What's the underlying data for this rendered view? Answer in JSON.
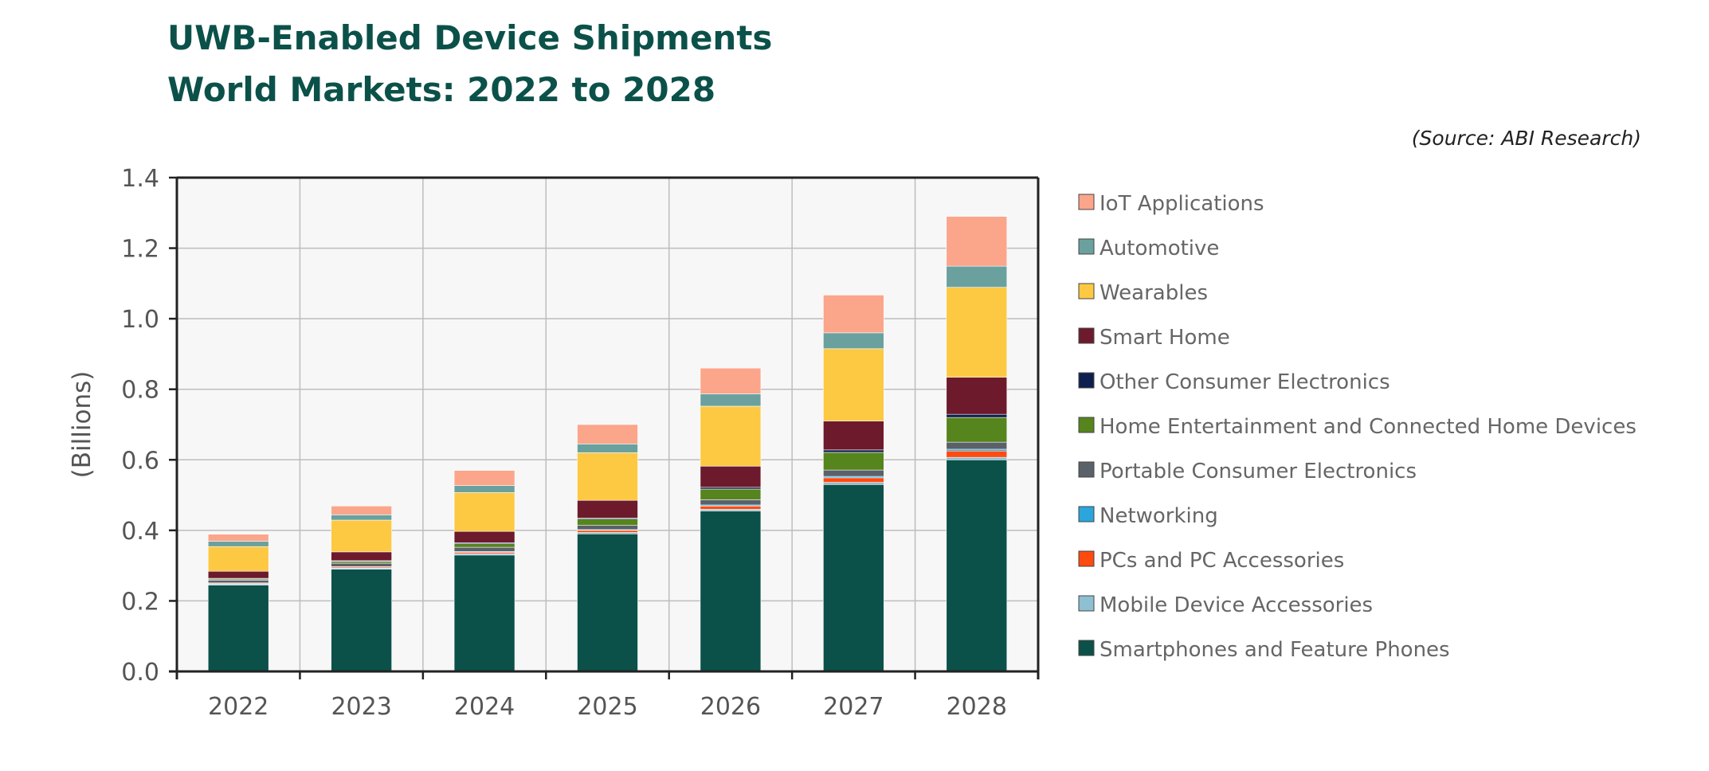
{
  "header": {
    "title_line1": "UWB-Enabled Device Shipments",
    "title_line2": "World Markets: 2022 to 2028",
    "source": "(Source: ABI Research)"
  },
  "chart_data": {
    "type": "bar",
    "stacked": true,
    "title": "UWB-Enabled Device Shipments World Markets: 2022 to 2028",
    "xlabel": "",
    "ylabel": "(Billions)",
    "categories": [
      "2022",
      "2023",
      "2024",
      "2025",
      "2026",
      "2027",
      "2028"
    ],
    "ylim": [
      0,
      1.4
    ],
    "yticks": [
      "0.0",
      "0.2",
      "0.4",
      "0.6",
      "0.8",
      "1.0",
      "1.2",
      "1.4"
    ],
    "grid": true,
    "legend_position": "right",
    "series": [
      {
        "name": "Smartphones and Feature Phones",
        "color": "#0b5149",
        "values": [
          0.245,
          0.29,
          0.33,
          0.39,
          0.455,
          0.53,
          0.6
        ]
      },
      {
        "name": "Mobile Device Accessories",
        "color": "#8fbfd2",
        "values": [
          0.003,
          0.003,
          0.004,
          0.004,
          0.005,
          0.006,
          0.007
        ]
      },
      {
        "name": "PCs and PC Accessories",
        "color": "#ff4a10",
        "values": [
          0.002,
          0.003,
          0.004,
          0.006,
          0.009,
          0.013,
          0.018
        ]
      },
      {
        "name": "Networking",
        "color": "#2aa6dc",
        "values": [
          0.001,
          0.001,
          0.002,
          0.002,
          0.003,
          0.004,
          0.005
        ]
      },
      {
        "name": "Portable Consumer Electronics",
        "color": "#5b6169",
        "values": [
          0.008,
          0.01,
          0.012,
          0.012,
          0.015,
          0.018,
          0.02
        ]
      },
      {
        "name": "Home Entertainment and Connected Home Devices",
        "color": "#56841d",
        "values": [
          0.003,
          0.005,
          0.01,
          0.018,
          0.03,
          0.05,
          0.07
        ]
      },
      {
        "name": "Other Consumer Electronics",
        "color": "#0e1f4e",
        "values": [
          0.002,
          0.002,
          0.003,
          0.003,
          0.005,
          0.007,
          0.009
        ]
      },
      {
        "name": "Smart Home",
        "color": "#6d1a2c",
        "values": [
          0.02,
          0.025,
          0.032,
          0.05,
          0.06,
          0.082,
          0.105
        ]
      },
      {
        "name": "Wearables",
        "color": "#fdc943",
        "values": [
          0.07,
          0.09,
          0.11,
          0.135,
          0.17,
          0.205,
          0.255
        ]
      },
      {
        "name": "Automotive",
        "color": "#6aa19f",
        "values": [
          0.015,
          0.015,
          0.02,
          0.025,
          0.035,
          0.045,
          0.06
        ]
      },
      {
        "name": "IoT Applications",
        "color": "#fba58b",
        "values": [
          0.02,
          0.025,
          0.043,
          0.055,
          0.073,
          0.107,
          0.141
        ]
      }
    ]
  }
}
